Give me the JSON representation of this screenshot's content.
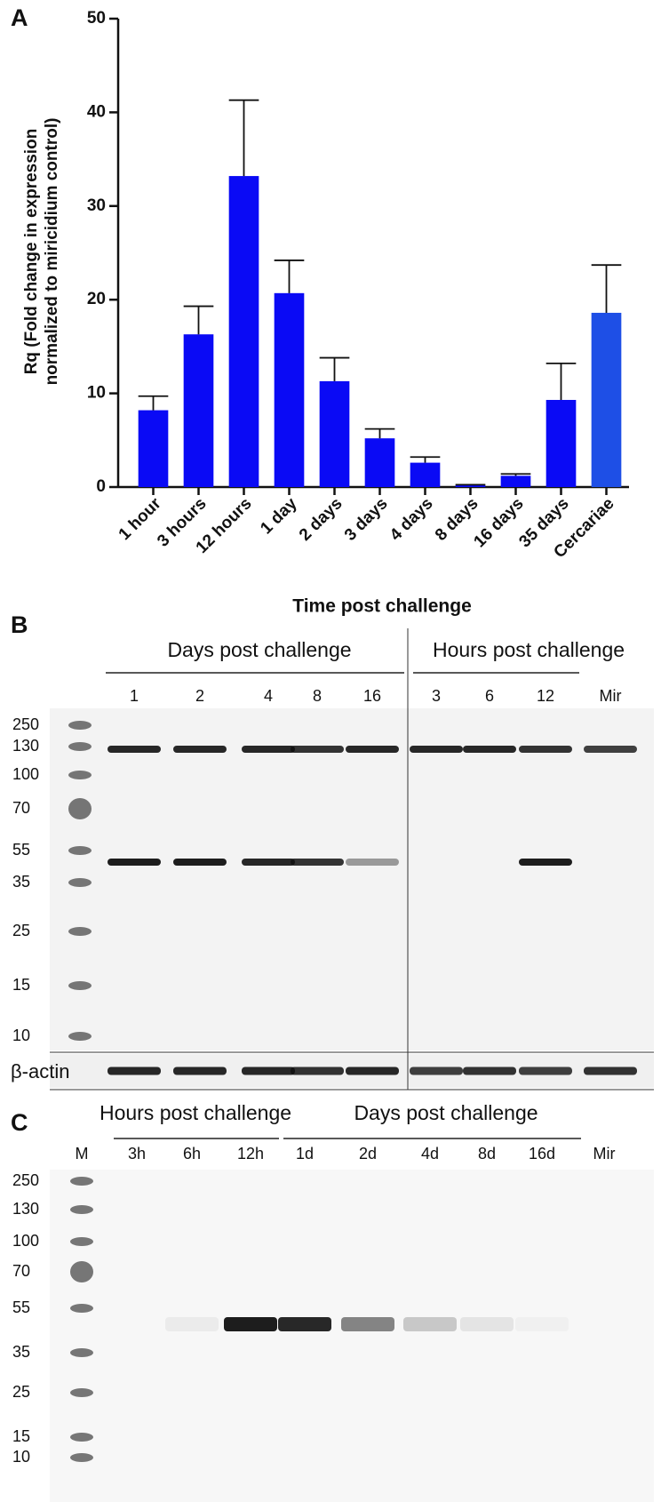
{
  "chart_data": {
    "type": "bar",
    "panel_label": "A",
    "categories": [
      "1 hour",
      "3 hours",
      "12 hours",
      "1 day",
      "2 days",
      "3 days",
      "4 days",
      "8 days",
      "16 days",
      "35 days",
      "Cercariae"
    ],
    "values": [
      8.2,
      16.3,
      33.2,
      20.7,
      11.3,
      5.2,
      2.6,
      0.2,
      1.2,
      9.3,
      18.6
    ],
    "errors": [
      1.5,
      3.0,
      8.1,
      3.5,
      2.5,
      1.0,
      0.6,
      0.05,
      0.2,
      3.9,
      5.1
    ],
    "colors": [
      "#0a0af5",
      "#0a0af5",
      "#0a0af5",
      "#0a0af5",
      "#0a0af5",
      "#0a0af5",
      "#0a0af5",
      "#0a0af5",
      "#0a0af5",
      "#0a0af5",
      "#1e4fe6"
    ],
    "ylim": [
      0,
      50
    ],
    "yticks": [
      0,
      10,
      20,
      30,
      40,
      50
    ],
    "ylabel": [
      "Rq (Fold change in expression",
      "normalized to miricidium control)"
    ],
    "xlabel": "Time post challenge"
  },
  "blot_b": {
    "panel_label": "B",
    "groups": [
      "Days post challenge",
      "Hours post challenge"
    ],
    "lanes": [
      "1",
      "2",
      "4",
      "8",
      "16",
      "3",
      "6",
      "12",
      "Mir"
    ],
    "markers": [
      250,
      130,
      100,
      70,
      55,
      35,
      25,
      15,
      10
    ],
    "loading_control": "β-actin"
  },
  "blot_c": {
    "panel_label": "C",
    "groups": [
      "Hours post challenge",
      "Days post challenge"
    ],
    "lanes": [
      "M",
      "3h",
      "6h",
      "12h",
      "1d",
      "2d",
      "4d",
      "8d",
      "16d",
      "Mir"
    ],
    "markers": [
      250,
      130,
      100,
      70,
      55,
      35,
      25,
      15,
      10
    ]
  }
}
